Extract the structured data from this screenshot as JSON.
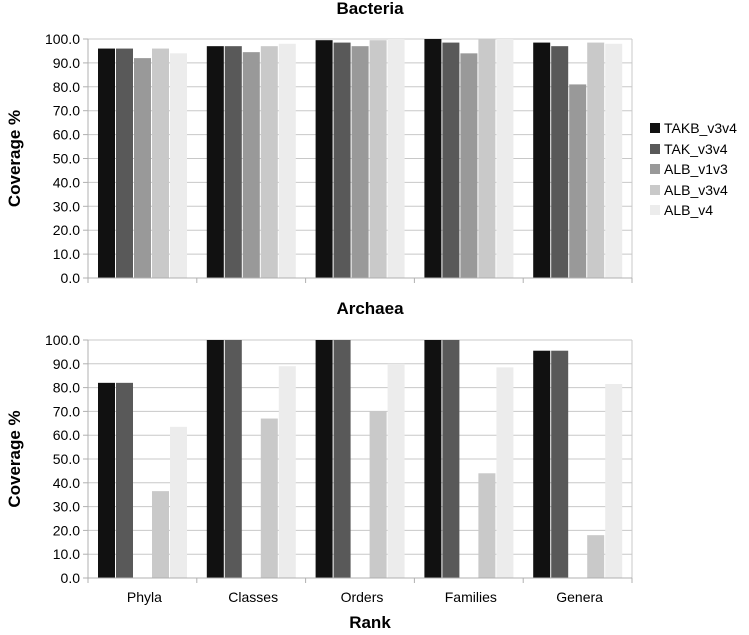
{
  "chart_data": {
    "type": "bar",
    "xlabel": "Rank",
    "categories": [
      "Phyla",
      "Classes",
      "Orders",
      "Families",
      "Genera"
    ],
    "legend_position": "right",
    "series_names": [
      "TAKB_v3v4",
      "TAK_v3v4",
      "ALB_v1v3",
      "ALB_v3v4",
      "ALB_v4"
    ],
    "series_colors": [
      "#111111",
      "#595959",
      "#999999",
      "#c9c9c9",
      "#ececec"
    ],
    "panels": [
      {
        "title": "Bacteria",
        "ylabel": "Coverage %",
        "ylim": [
          0,
          100
        ],
        "yticks": [
          "0.0",
          "10.0",
          "20.0",
          "30.0",
          "40.0",
          "50.0",
          "60.0",
          "70.0",
          "80.0",
          "90.0",
          "100.0"
        ],
        "grid": true,
        "series": [
          {
            "name": "TAKB_v3v4",
            "values": [
              96,
              97,
              99.5,
              100,
              98.5
            ]
          },
          {
            "name": "TAK_v3v4",
            "values": [
              96,
              97,
              98.5,
              98.5,
              97
            ]
          },
          {
            "name": "ALB_v1v3",
            "values": [
              92,
              94.5,
              97,
              94,
              81
            ]
          },
          {
            "name": "ALB_v3v4",
            "values": [
              96,
              97,
              99.5,
              100,
              98.5
            ]
          },
          {
            "name": "ALB_v4",
            "values": [
              94,
              98,
              100,
              100,
              98
            ]
          }
        ]
      },
      {
        "title": "Archaea",
        "ylabel": "Coverage %",
        "ylim": [
          0,
          100
        ],
        "yticks": [
          "0.0",
          "10.0",
          "20.0",
          "30.0",
          "40.0",
          "50.0",
          "60.0",
          "70.0",
          "80.0",
          "90.0",
          "100.0"
        ],
        "grid": true,
        "series": [
          {
            "name": "TAKB_v3v4",
            "values": [
              82,
              100,
              100,
              100,
              95.5
            ]
          },
          {
            "name": "TAK_v3v4",
            "values": [
              82,
              100,
              100,
              100,
              95.5
            ]
          },
          {
            "name": "ALB_v1v3",
            "values": [
              0,
              0,
              0,
              0,
              0
            ]
          },
          {
            "name": "ALB_v3v4",
            "values": [
              36.5,
              67,
              70,
              44,
              18
            ]
          },
          {
            "name": "ALB_v4",
            "values": [
              63.5,
              89,
              90,
              88.5,
              81.5
            ]
          }
        ]
      }
    ]
  }
}
